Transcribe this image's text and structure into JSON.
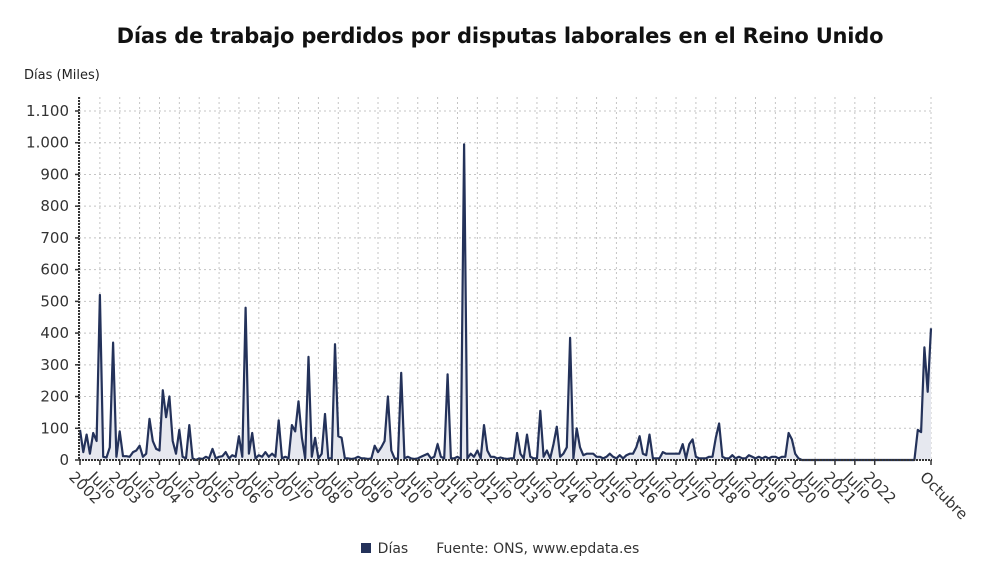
{
  "chart_data": {
    "type": "area",
    "title": "Días de trabajo perdidos por disputas laborales en el Reino Unido",
    "xlabel": "",
    "ylabel": "Días (Miles)",
    "ylim": [
      0,
      1100
    ],
    "yticks": [
      0,
      100,
      200,
      300,
      400,
      500,
      600,
      700,
      800,
      900,
      1000,
      1100
    ],
    "ytick_labels": [
      "0",
      "100",
      "200",
      "300",
      "400",
      "500",
      "600",
      "700",
      "800",
      "900",
      "1.000",
      "1.100"
    ],
    "xtick_labels": [
      "2002",
      "Julio",
      "2003",
      "Julio",
      "2004",
      "Julio",
      "2005",
      "Julio",
      "2006",
      "Julio",
      "2007",
      "Julio",
      "2008",
      "Julio",
      "2009",
      "Julio",
      "2010",
      "Julio",
      "2011",
      "Julio",
      "2012",
      "Julio",
      "2013",
      "Julio",
      "2014",
      "Julio",
      "2015",
      "Julio",
      "2016",
      "Julio",
      "2017",
      "Julio",
      "2018",
      "Julio",
      "2019",
      "Julio",
      "2020",
      "Julio",
      "2021",
      "Julio",
      "2022",
      "Octubre"
    ],
    "x_start": "Enero 2002",
    "x_end": "Octubre 2022",
    "frequency": "monthly",
    "grid": true,
    "legend_position": "bottom",
    "series": [
      {
        "name": "Días",
        "color": "#24325a",
        "fill": "#e6e8ef",
        "values": [
          95,
          25,
          80,
          20,
          85,
          60,
          520,
          10,
          8,
          40,
          370,
          10,
          90,
          12,
          12,
          10,
          25,
          30,
          45,
          10,
          20,
          130,
          60,
          35,
          30,
          220,
          135,
          200,
          60,
          20,
          95,
          10,
          5,
          110,
          5,
          0,
          5,
          3,
          10,
          5,
          35,
          5,
          10,
          12,
          25,
          5,
          15,
          10,
          75,
          10,
          480,
          20,
          85,
          5,
          15,
          10,
          25,
          10,
          20,
          10,
          125,
          5,
          10,
          5,
          110,
          90,
          185,
          70,
          5,
          325,
          10,
          70,
          5,
          20,
          145,
          5,
          5,
          365,
          75,
          70,
          5,
          5,
          3,
          5,
          10,
          5,
          5,
          3,
          5,
          45,
          25,
          40,
          60,
          200,
          30,
          5,
          3,
          275,
          5,
          10,
          5,
          3,
          5,
          10,
          15,
          20,
          5,
          10,
          50,
          10,
          5,
          270,
          5,
          5,
          10,
          3,
          995,
          5,
          20,
          10,
          30,
          5,
          110,
          30,
          10,
          10,
          5,
          8,
          5,
          3,
          5,
          5,
          85,
          20,
          5,
          80,
          10,
          5,
          5,
          155,
          10,
          30,
          5,
          50,
          105,
          10,
          20,
          40,
          385,
          5,
          100,
          40,
          15,
          20,
          20,
          20,
          10,
          10,
          5,
          10,
          20,
          10,
          5,
          15,
          5,
          15,
          20,
          20,
          40,
          75,
          20,
          15,
          80,
          5,
          5,
          5,
          25,
          20,
          20,
          20,
          20,
          20,
          50,
          5,
          50,
          65,
          10,
          5,
          5,
          5,
          10,
          10,
          70,
          115,
          10,
          5,
          5,
          15,
          5,
          10,
          5,
          5,
          15,
          10,
          5,
          10,
          5,
          10,
          5,
          10,
          10,
          5,
          10,
          10,
          85,
          65,
          20,
          5,
          0,
          0,
          0,
          0,
          0,
          0,
          0,
          0,
          0,
          0,
          0,
          0,
          0,
          0,
          0,
          0,
          0,
          0,
          0,
          0,
          0,
          0,
          0,
          0,
          0,
          0,
          0,
          0,
          0,
          0,
          0,
          0,
          0,
          0,
          0,
          95,
          88,
          355,
          215,
          415
        ]
      }
    ]
  },
  "header": {
    "title": "Días de trabajo perdidos por disputas laborales en el Reino Unido",
    "y_axis_label": "Días (Miles)"
  },
  "legend": {
    "series_label": "Días",
    "source": "Fuente: ONS, www.epdata.es"
  }
}
